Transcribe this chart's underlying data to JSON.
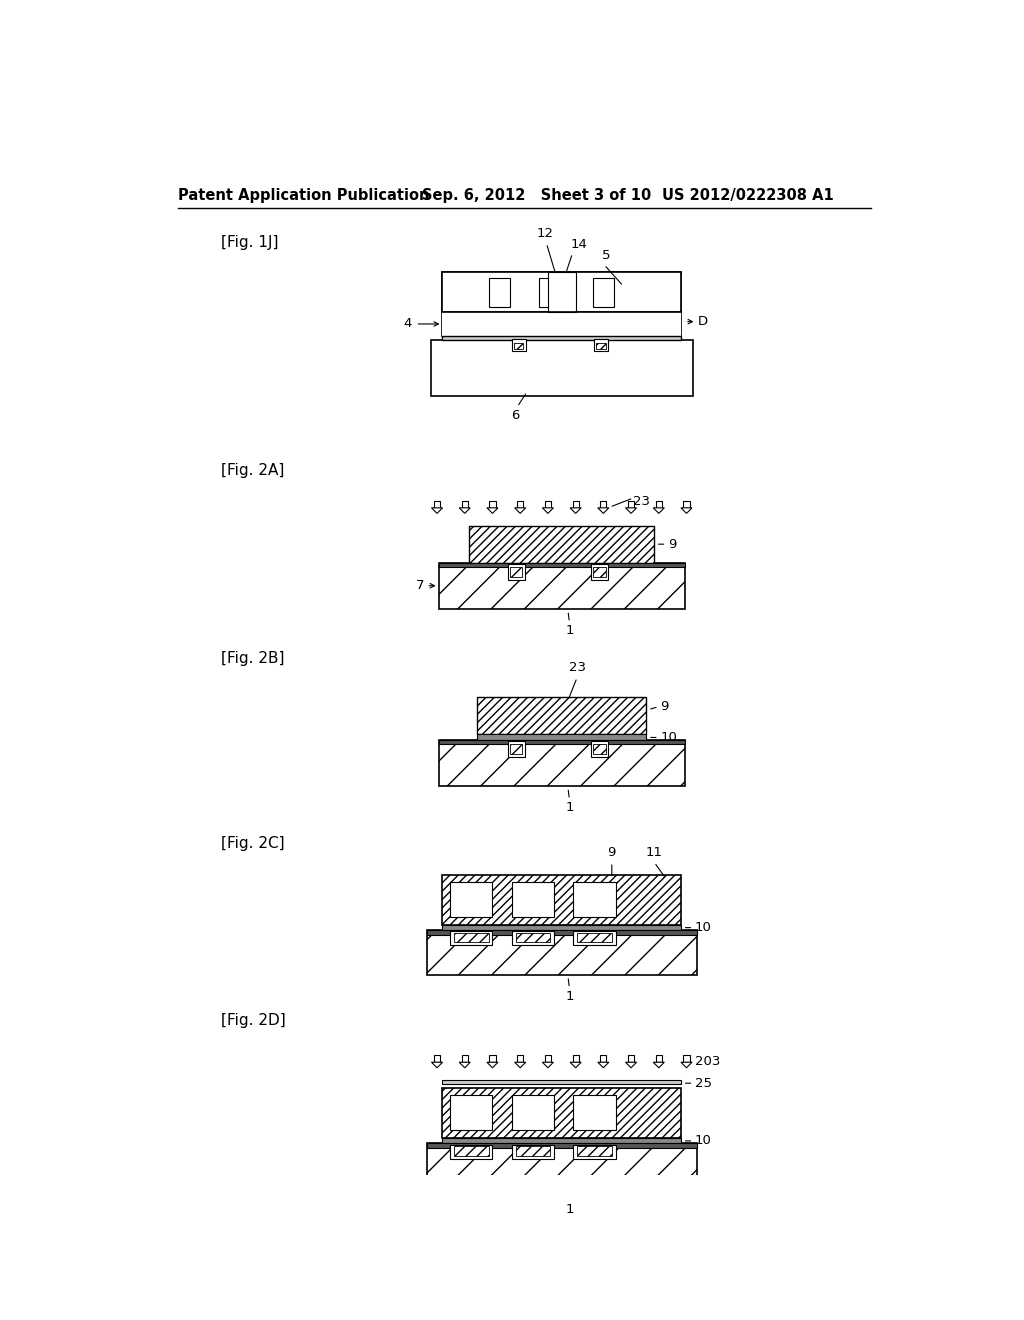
{
  "title_left": "Patent Application Publication",
  "title_mid": "Sep. 6, 2012   Sheet 3 of 10",
  "title_right": "US 2012/0222308 A1",
  "background": "#ffffff"
}
